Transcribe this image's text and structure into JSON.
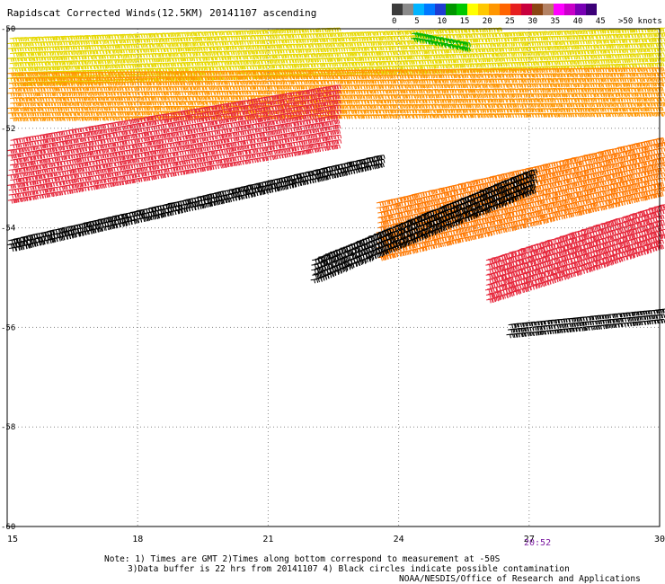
{
  "title": "Rapidscat Corrected Winds(12.5KM) 20141107 ascending",
  "legend": {
    "colors": [
      "#3c3c3c",
      "#8a8a8a",
      "#00b4ff",
      "#0078ff",
      "#1e3cd2",
      "#009600",
      "#00c800",
      "#ffff00",
      "#ffc800",
      "#ff9600",
      "#ff6400",
      "#e61e1e",
      "#c8003c",
      "#8b4513",
      "#b48264",
      "#ff00ff",
      "#c800c8",
      "#7800b4",
      "#3c0078"
    ],
    "labels": [
      {
        "text": "0",
        "idx": 0
      },
      {
        "text": "5",
        "idx": 2
      },
      {
        "text": "10",
        "idx": 4
      },
      {
        "text": "15",
        "idx": 6
      },
      {
        "text": "20",
        "idx": 8
      },
      {
        "text": "25",
        "idx": 10
      },
      {
        "text": "30",
        "idx": 12
      },
      {
        "text": "35",
        "idx": 14
      },
      {
        "text": "40",
        "idx": 16
      },
      {
        "text": "45",
        "idx": 18
      },
      {
        "text": ">50 knots",
        "idx": 20
      }
    ]
  },
  "chart_data": {
    "type": "scatter",
    "title": "Rapidscat Corrected Winds(12.5KM) 20141107 ascending",
    "x": {
      "min": 15,
      "max": 30,
      "ticks": [
        "15",
        "18",
        "21",
        "24",
        "27",
        "30"
      ],
      "values": [
        15,
        18,
        21,
        24,
        27,
        30
      ]
    },
    "y": {
      "min": -60,
      "max": -50,
      "ticks": [
        "-50",
        "-52",
        "-54",
        "-56",
        "-58",
        "-60"
      ],
      "values": [
        -50,
        -52,
        -54,
        -56,
        -58,
        -60
      ]
    },
    "grid": true,
    "time_label": "20:52",
    "swaths": [
      {
        "name": "upper-yellow",
        "color": "#e6d800",
        "from": [
          15.0,
          -50.6
        ],
        "to": [
          30.0,
          -50.2
        ],
        "width_deg": 1.0
      },
      {
        "name": "upper-orange",
        "color": "#ff9600",
        "from": [
          15.0,
          -51.3
        ],
        "to": [
          30.0,
          -51.2
        ],
        "width_deg": 1.0
      },
      {
        "name": "main-red",
        "color": "#e6283c",
        "from": [
          15.0,
          -52.8
        ],
        "to": [
          22.5,
          -51.7
        ],
        "width_deg": 1.3
      },
      {
        "name": "main-dark-band",
        "color": "#000000",
        "from": [
          15.0,
          -54.3
        ],
        "to": [
          23.5,
          -52.6
        ],
        "width_deg": 0.25
      },
      {
        "name": "right-orange",
        "color": "#ff7800",
        "from": [
          23.5,
          -54.0
        ],
        "to": [
          30.0,
          -52.7
        ],
        "width_deg": 1.2
      },
      {
        "name": "right-red",
        "color": "#e6283c",
        "from": [
          26.0,
          -55.0
        ],
        "to": [
          30.0,
          -53.9
        ],
        "width_deg": 0.9
      },
      {
        "name": "right-dark-edge",
        "color": "#000000",
        "from": [
          22.0,
          -54.8
        ],
        "to": [
          27.0,
          -53.0
        ],
        "width_deg": 0.5
      },
      {
        "name": "lower-dark",
        "color": "#000000",
        "from": [
          26.5,
          -56.0
        ],
        "to": [
          30.0,
          -55.7
        ],
        "width_deg": 0.3
      },
      {
        "name": "green-patch",
        "color": "#00b400",
        "from": [
          24.3,
          -50.1
        ],
        "to": [
          25.5,
          -50.3
        ],
        "width_deg": 0.2
      }
    ]
  },
  "notes": {
    "line1": "Note: 1) Times are GMT 2)Times along bottom correspond to measurement at -50S",
    "line2": "3)Data buffer is 22 hrs from 20141107 4) Black circles indicate possible contamination",
    "line3": "NOAA/NESDIS/Office of Research and Applications"
  }
}
